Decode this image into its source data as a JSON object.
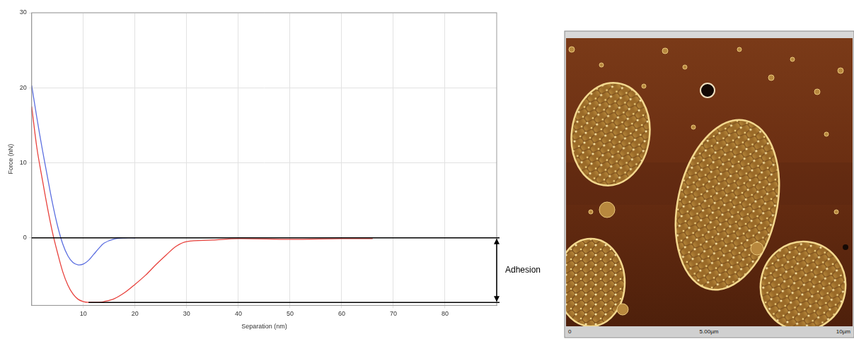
{
  "chart_data": {
    "type": "line",
    "x_label": "Separation (nm)",
    "y_label": "Force (nN)",
    "x": [
      0,
      1,
      2,
      3,
      4,
      5,
      6,
      7,
      8,
      9,
      10,
      11,
      12,
      13,
      14,
      16,
      18,
      20,
      22,
      24,
      26,
      28,
      30,
      35,
      40,
      50,
      60,
      66
    ],
    "series": [
      {
        "color": "#5b6ee0",
        "values": [
          20.3,
          16,
          12,
          8.3,
          4.7,
          1.6,
          -0.8,
          -2.4,
          -3.3,
          -3.6,
          -3.5,
          -3,
          -2.2,
          -1.4,
          -0.7,
          -0.15,
          0,
          0,
          null,
          null,
          null,
          null,
          null,
          null,
          null,
          null,
          null,
          null
        ]
      },
      {
        "color": "#e8413c",
        "values": [
          17.5,
          12,
          8,
          4.2,
          0.8,
          -2,
          -4.5,
          -6.3,
          -7.5,
          -8.2,
          -8.5,
          -8.6,
          -8.6,
          -8.6,
          -8.5,
          -8.1,
          -7.3,
          -6.2,
          -5,
          -3.6,
          -2.3,
          -1.1,
          -0.5,
          -0.3,
          -0.1,
          -0.2,
          -0.1,
          -0.1
        ]
      }
    ],
    "xlim": [
      0,
      90
    ],
    "xticks": [
      10,
      20,
      30,
      40,
      50,
      60,
      70,
      80
    ],
    "ylim": [
      -9,
      30
    ],
    "yticks": [
      0,
      10,
      20,
      30
    ],
    "grid": true,
    "annotations": [
      {
        "text": "Adhesion",
        "from": 0,
        "to": -8.6
      }
    ]
  },
  "image": {
    "scale_labels": [
      "0",
      "5.00µm",
      "10µm"
    ]
  }
}
